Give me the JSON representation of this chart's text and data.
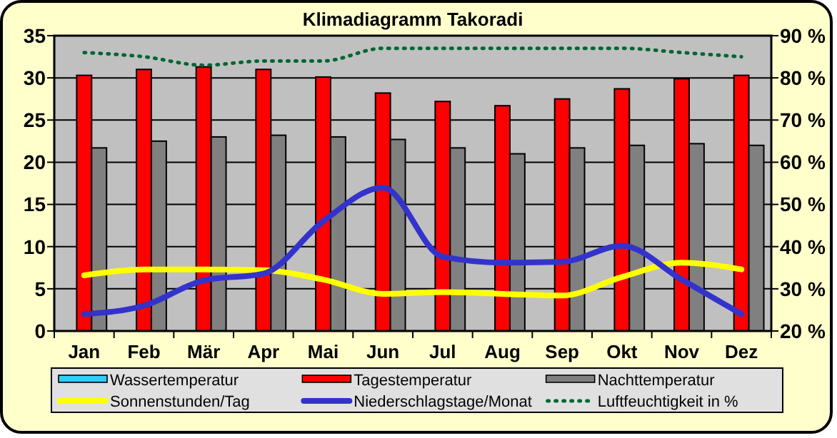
{
  "chart_data": {
    "type": "bar",
    "title": "Klimadiagramm Takoradi",
    "categories": [
      "Jan",
      "Feb",
      "Mär",
      "Apr",
      "Mai",
      "Jun",
      "Jul",
      "Aug",
      "Sep",
      "Okt",
      "Nov",
      "Dez"
    ],
    "series": [
      {
        "name": "Wassertemperatur",
        "color": "#33ccff",
        "values": [
          null,
          null,
          null,
          null,
          null,
          null,
          null,
          null,
          null,
          null,
          null,
          null
        ]
      },
      {
        "name": "Tagestemperatur",
        "color": "#ff0000",
        "values": [
          30.3,
          31,
          31.3,
          31,
          30.1,
          28.2,
          27.2,
          26.7,
          27.5,
          28.7,
          29.9,
          30.3
        ]
      },
      {
        "name": "Nachttemperatur",
        "color": "#808080",
        "values": [
          21.7,
          22.5,
          23,
          23.2,
          23,
          22.7,
          21.7,
          21,
          21.7,
          22,
          22.2,
          22
        ]
      },
      {
        "name": "Sonnenstunden/Tag",
        "type": "line",
        "color": "#ffff00",
        "line_style": "solid",
        "values": [
          6.6,
          7.3,
          7.3,
          7.2,
          6.1,
          4.4,
          4.6,
          4.4,
          4.2,
          6.4,
          8.1,
          7.3
        ]
      },
      {
        "name": "Niederschlagstage/Monat",
        "type": "line",
        "color": "#3333cc",
        "line_style": "solid",
        "values": [
          2,
          3,
          6,
          6.8,
          13,
          17,
          8.8,
          8.1,
          8.2,
          10.1,
          6.1,
          2
        ]
      },
      {
        "name": "Luftfeuchtigkeit in %",
        "type": "line",
        "axis": "y2",
        "color": "#006633",
        "line_style": "dotted",
        "values": [
          86,
          85,
          83,
          84,
          84,
          87,
          87,
          87,
          87,
          87,
          86,
          85
        ]
      }
    ],
    "ylim": [
      0,
      35
    ],
    "yticks": [
      0,
      5,
      10,
      15,
      20,
      25,
      30,
      35
    ],
    "y2lim": [
      20,
      90
    ],
    "y2ticks": [
      {
        "value": 20,
        "label": "20 %"
      },
      {
        "value": 30,
        "label": "30 %"
      },
      {
        "value": 40,
        "label": "40 %"
      },
      {
        "value": 50,
        "label": "50 %"
      },
      {
        "value": 60,
        "label": "60 %"
      },
      {
        "value": 70,
        "label": "70 %"
      },
      {
        "value": 80,
        "label": "80 %"
      },
      {
        "value": 90,
        "label": "90 %"
      }
    ],
    "grid": "y",
    "legend": "bottom"
  }
}
